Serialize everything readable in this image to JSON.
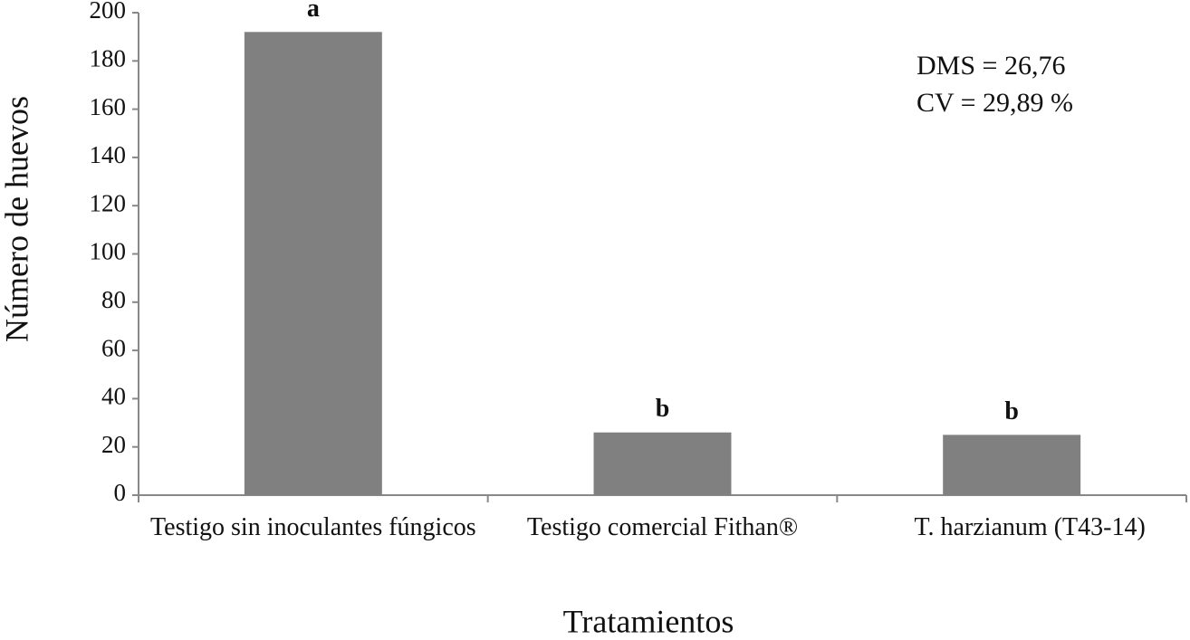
{
  "chart_data": {
    "type": "bar",
    "x_label": "Tratamientos",
    "y_label": "Número de huevos",
    "categories": [
      "Testigo sin inoculantes fúngicos",
      "Testigo comercial Fithan®",
      "T. harzianum (T43-14)"
    ],
    "values": [
      192,
      26,
      25
    ],
    "group_letters": [
      "a",
      "b",
      "b"
    ],
    "color": "#808080",
    "ylim": [
      0,
      200
    ],
    "yticks": [
      0,
      20,
      40,
      60,
      80,
      100,
      120,
      140,
      160,
      180,
      200
    ],
    "grid": false,
    "annotations": [
      "DMS =  26,76",
      "CV =  29,89 %"
    ]
  }
}
